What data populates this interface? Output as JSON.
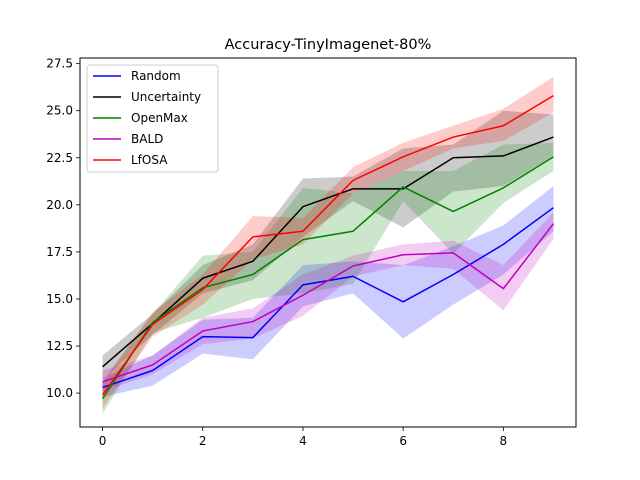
{
  "chart_data": {
    "type": "line",
    "title": "Accuracy-TinyImagenet-80%",
    "xlabel": "",
    "ylabel": "",
    "xlim": [
      -0.45,
      9.45
    ],
    "ylim": [
      8.2,
      27.8
    ],
    "x_ticks": [
      0,
      2,
      4,
      6,
      8
    ],
    "x_tick_labels": [
      "0",
      "2",
      "4",
      "6",
      "8"
    ],
    "y_ticks": [
      10.0,
      12.5,
      15.0,
      17.5,
      20.0,
      22.5,
      25.0,
      27.5
    ],
    "y_tick_labels": [
      "10.0",
      "12.5",
      "15.0",
      "17.5",
      "20.0",
      "22.5",
      "25.0",
      "27.5"
    ],
    "grid": false,
    "legend_position": "top-left",
    "x": [
      0,
      1,
      2,
      3,
      4,
      5,
      6,
      7,
      8,
      9
    ],
    "series": [
      {
        "name": "Random",
        "color": "#0000ff",
        "values": [
          10.3,
          11.2,
          13.0,
          12.95,
          15.75,
          16.2,
          14.85,
          16.3,
          17.9,
          19.85
        ],
        "band_lower": [
          9.8,
          10.4,
          12.1,
          11.8,
          14.6,
          15.3,
          12.9,
          14.7,
          16.3,
          18.6
        ],
        "band_upper": [
          10.8,
          12.0,
          13.9,
          14.0,
          16.8,
          17.0,
          16.8,
          17.8,
          18.9,
          21.0
        ]
      },
      {
        "name": "Uncertainty",
        "color": "#000000",
        "values": [
          11.4,
          13.7,
          16.1,
          17.0,
          19.9,
          20.85,
          20.85,
          22.5,
          22.6,
          23.6
        ],
        "band_lower": [
          10.7,
          13.1,
          15.3,
          16.0,
          18.3,
          20.2,
          18.8,
          20.7,
          21.0,
          22.6
        ],
        "band_upper": [
          12.0,
          14.2,
          16.8,
          17.9,
          21.4,
          21.5,
          23.0,
          23.2,
          25.0,
          24.8
        ]
      },
      {
        "name": "OpenMax",
        "color": "#008000",
        "values": [
          9.7,
          13.75,
          15.6,
          16.3,
          18.15,
          18.6,
          20.95,
          19.65,
          20.9,
          22.55
        ],
        "band_lower": [
          8.9,
          13.2,
          14.0,
          15.0,
          15.3,
          15.8,
          20.2,
          17.4,
          20.1,
          21.8
        ],
        "band_upper": [
          10.6,
          14.2,
          17.3,
          17.5,
          20.9,
          20.6,
          21.8,
          21.8,
          23.2,
          23.3
        ]
      },
      {
        "name": "BALD",
        "color": "#bf00bf",
        "values": [
          10.6,
          11.5,
          13.3,
          13.8,
          15.2,
          16.75,
          17.35,
          17.45,
          15.55,
          19.0
        ],
        "band_lower": [
          10.1,
          11.0,
          12.6,
          12.9,
          14.1,
          16.2,
          16.8,
          16.6,
          14.4,
          18.2
        ],
        "band_upper": [
          11.2,
          12.0,
          14.0,
          14.5,
          16.3,
          17.3,
          17.9,
          18.1,
          16.8,
          19.6
        ]
      },
      {
        "name": "LfOSA",
        "color": "#ff0000",
        "values": [
          9.9,
          13.65,
          15.5,
          18.3,
          18.6,
          21.3,
          22.55,
          23.6,
          24.2,
          25.8
        ],
        "band_lower": [
          9.2,
          13.0,
          14.7,
          17.1,
          17.9,
          20.6,
          21.8,
          23.0,
          23.4,
          24.9
        ],
        "band_upper": [
          10.6,
          14.3,
          16.3,
          19.4,
          19.3,
          22.0,
          23.3,
          24.2,
          25.1,
          26.8
        ]
      }
    ]
  }
}
